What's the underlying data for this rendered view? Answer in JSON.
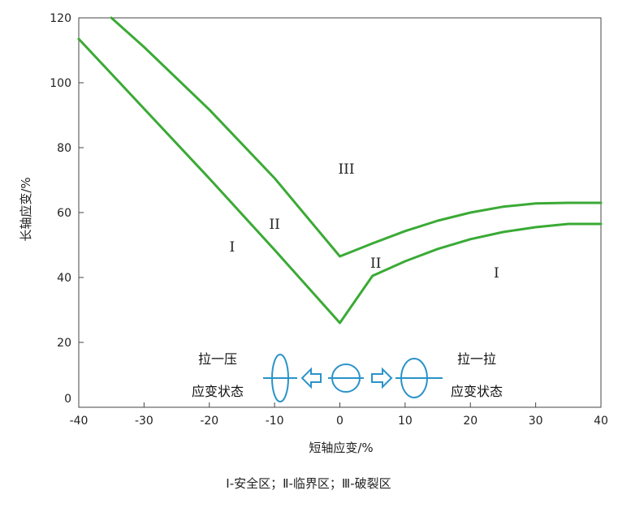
{
  "chart_data": {
    "type": "line",
    "xlabel": "短轴应变/%",
    "ylabel": "长轴应变/%",
    "xlim": [
      -40,
      40
    ],
    "ylim": [
      0,
      120
    ],
    "x_ticks": [
      "-40",
      "-30",
      "-20",
      "-10",
      "0",
      "10",
      "20",
      "30",
      "40"
    ],
    "y_ticks": [
      "0",
      "20",
      "40",
      "60",
      "80",
      "100",
      "120"
    ],
    "grid": false,
    "line_color": "#3aaa35",
    "series": [
      {
        "x": [
          -35,
          -30,
          -20,
          -10,
          0,
          5,
          10,
          15,
          20,
          25,
          30,
          35,
          40
        ],
        "y": [
          120,
          111,
          91.7,
          70.6,
          46.5,
          50.5,
          54.3,
          57.5,
          60,
          61.8,
          62.8,
          63,
          63
        ]
      },
      {
        "x": [
          -40,
          -30,
          -20,
          -10,
          0,
          5,
          10,
          15,
          20,
          25,
          30,
          35,
          40
        ],
        "y": [
          113.5,
          92,
          70.5,
          48.5,
          26,
          40.5,
          45,
          48.8,
          51.8,
          54,
          55.5,
          56.5,
          56.5
        ]
      }
    ],
    "annotations": [
      {
        "text": "III",
        "x": 1,
        "y": 72
      },
      {
        "text": "II",
        "x": -10,
        "y": 55
      },
      {
        "text": "I",
        "x": -16.5,
        "y": 48
      },
      {
        "text": "II",
        "x": 5.5,
        "y": 43
      },
      {
        "text": "I",
        "x": 24,
        "y": 40
      }
    ],
    "states": {
      "left_top": "拉一压",
      "left_bottom": "应变状态",
      "right_top": "拉一拉",
      "right_bottom": "应变状态"
    },
    "legend": "Ⅰ-安全区；Ⅱ-临界区；Ⅲ-破裂区",
    "icon_color": "#2a93c9",
    "icons": [
      "vertical-ellipse-icon",
      "left-arrow-icon",
      "circle-icon",
      "right-arrow-icon",
      "ellipse-icon"
    ]
  }
}
